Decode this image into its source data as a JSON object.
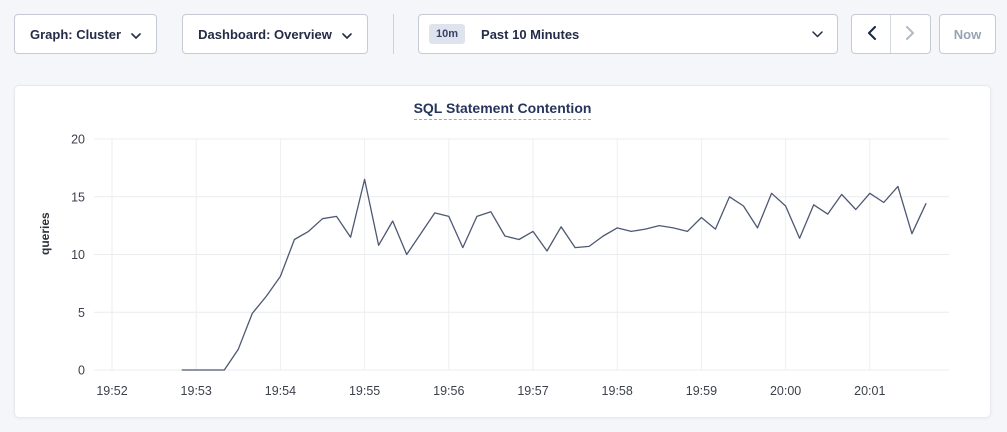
{
  "toolbar": {
    "graph_dropdown": {
      "text": "Graph: Cluster"
    },
    "dashboard_dropdown": {
      "text": "Dashboard: Overview"
    },
    "time_picker": {
      "badge": "10m",
      "label": "Past 10 Minutes"
    },
    "now_button": {
      "label": "Now"
    },
    "icons": {
      "chevron_down": "chevron-down-icon",
      "chevron_left": "chevron-left-icon",
      "chevron_right": "chevron-right-icon"
    }
  },
  "chart_data": {
    "type": "line",
    "title": "SQL Statement Contention",
    "ylabel": "queries",
    "ylim": [
      0,
      20
    ],
    "yticks": [
      0,
      5,
      10,
      15,
      20
    ],
    "x_tick_labels": [
      "19:52",
      "19:53",
      "19:54",
      "19:55",
      "19:56",
      "19:57",
      "19:58",
      "19:59",
      "20:00",
      "20:01"
    ],
    "grid": true,
    "legend": "none",
    "line_color": "#4e5873",
    "series": [
      {
        "name": "queries",
        "start_time": "19:52:50",
        "interval_seconds": 10,
        "values": [
          0,
          0,
          0,
          0,
          1.8,
          4.9,
          6.4,
          8.1,
          11.3,
          12.0,
          13.1,
          13.3,
          11.5,
          16.5,
          10.8,
          12.9,
          10.0,
          11.8,
          13.6,
          13.3,
          10.6,
          13.3,
          13.7,
          11.6,
          11.3,
          12.0,
          10.3,
          12.4,
          10.6,
          10.7,
          11.6,
          12.3,
          12.0,
          12.2,
          12.5,
          12.3,
          12.0,
          13.2,
          12.2,
          15.0,
          14.2,
          12.3,
          15.3,
          14.2,
          11.4,
          14.3,
          13.5,
          15.2,
          13.9,
          15.3,
          14.5,
          15.9,
          11.8,
          14.4
        ]
      }
    ]
  }
}
